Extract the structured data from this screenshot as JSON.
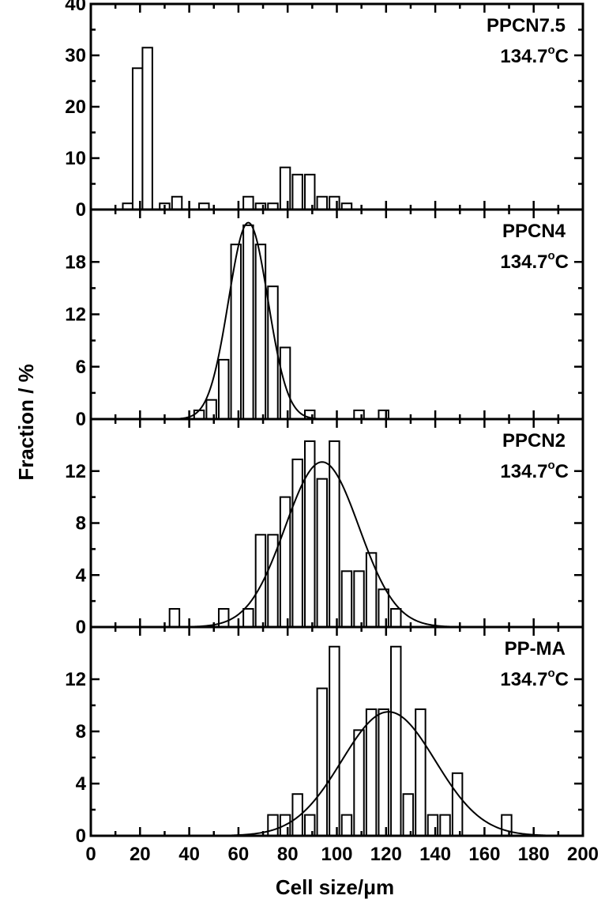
{
  "chart_data": {
    "type": "bar",
    "xlabel": "Cell size/μm",
    "ylabel": "Fraction / %",
    "xlim": [
      0,
      200
    ],
    "xticks": [
      0,
      20,
      40,
      60,
      80,
      100,
      120,
      140,
      160,
      180,
      200
    ],
    "bin_width": 4,
    "panels": [
      {
        "sample": "PPCN7.5",
        "temperature": "134.7",
        "temp_unit": "C",
        "ylim": [
          0,
          40
        ],
        "yticks": [
          0,
          10,
          20,
          30,
          40
        ],
        "bins": [
          {
            "x": 15,
            "y": 1.2
          },
          {
            "x": 19,
            "y": 27.5
          },
          {
            "x": 23,
            "y": 31.5
          },
          {
            "x": 30,
            "y": 1.2
          },
          {
            "x": 35,
            "y": 2.5
          },
          {
            "x": 46,
            "y": 1.2
          },
          {
            "x": 64,
            "y": 2.5
          },
          {
            "x": 69,
            "y": 1.2
          },
          {
            "x": 74,
            "y": 1.2
          },
          {
            "x": 79,
            "y": 8.2
          },
          {
            "x": 84,
            "y": 6.8
          },
          {
            "x": 89,
            "y": 6.8
          },
          {
            "x": 94,
            "y": 2.5
          },
          {
            "x": 99,
            "y": 2.5
          },
          {
            "x": 104,
            "y": 1.2
          }
        ],
        "fit": null
      },
      {
        "sample": "PPCN4",
        "temperature": "134.7",
        "temp_unit": "C",
        "ylim": [
          0,
          24
        ],
        "yticks": [
          0,
          6,
          12,
          18
        ],
        "bins": [
          {
            "x": 44,
            "y": 1.0
          },
          {
            "x": 49,
            "y": 2.2
          },
          {
            "x": 54,
            "y": 6.8
          },
          {
            "x": 59,
            "y": 20.0
          },
          {
            "x": 64,
            "y": 22.2
          },
          {
            "x": 69,
            "y": 20.0
          },
          {
            "x": 74,
            "y": 15.2
          },
          {
            "x": 79,
            "y": 8.2
          },
          {
            "x": 89,
            "y": 1.0
          },
          {
            "x": 109,
            "y": 1.0
          },
          {
            "x": 119,
            "y": 1.0
          }
        ],
        "fit": {
          "center": 64,
          "sigma": 8,
          "peak": 22.5
        }
      },
      {
        "sample": "PPCN2",
        "temperature": "134.7",
        "temp_unit": "C",
        "ylim": [
          0,
          16
        ],
        "yticks": [
          0,
          4,
          8,
          12
        ],
        "bins": [
          {
            "x": 34,
            "y": 1.4
          },
          {
            "x": 54,
            "y": 1.4
          },
          {
            "x": 64,
            "y": 1.4
          },
          {
            "x": 69,
            "y": 7.1
          },
          {
            "x": 74,
            "y": 7.1
          },
          {
            "x": 79,
            "y": 10.0
          },
          {
            "x": 84,
            "y": 12.9
          },
          {
            "x": 89,
            "y": 14.3
          },
          {
            "x": 94,
            "y": 11.4
          },
          {
            "x": 99,
            "y": 14.3
          },
          {
            "x": 104,
            "y": 4.3
          },
          {
            "x": 109,
            "y": 4.3
          },
          {
            "x": 114,
            "y": 5.7
          },
          {
            "x": 119,
            "y": 2.9
          },
          {
            "x": 124,
            "y": 1.4
          }
        ],
        "fit": {
          "center": 94,
          "sigma": 15,
          "peak": 12.7
        }
      },
      {
        "sample": "PP-MA",
        "temperature": "134.7",
        "temp_unit": "C",
        "ylim": [
          0,
          16
        ],
        "yticks": [
          0,
          4,
          8,
          12
        ],
        "bins": [
          {
            "x": 74,
            "y": 1.6
          },
          {
            "x": 79,
            "y": 1.6
          },
          {
            "x": 84,
            "y": 3.2
          },
          {
            "x": 89,
            "y": 1.6
          },
          {
            "x": 94,
            "y": 11.3
          },
          {
            "x": 99,
            "y": 14.5
          },
          {
            "x": 104,
            "y": 1.6
          },
          {
            "x": 109,
            "y": 8.1
          },
          {
            "x": 114,
            "y": 9.7
          },
          {
            "x": 119,
            "y": 9.7
          },
          {
            "x": 124,
            "y": 14.5
          },
          {
            "x": 129,
            "y": 3.2
          },
          {
            "x": 134,
            "y": 9.7
          },
          {
            "x": 139,
            "y": 1.6
          },
          {
            "x": 144,
            "y": 1.6
          },
          {
            "x": 149,
            "y": 4.8
          },
          {
            "x": 169,
            "y": 1.6
          }
        ],
        "fit": {
          "center": 121,
          "sigma": 19,
          "peak": 9.5
        }
      }
    ]
  }
}
